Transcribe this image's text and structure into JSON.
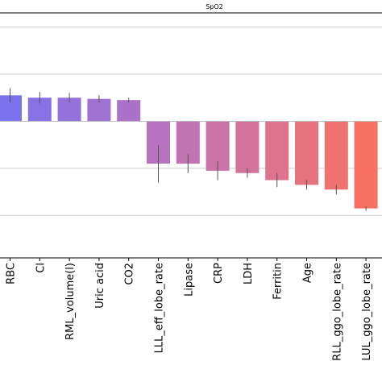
{
  "chart_data": {
    "type": "bar",
    "title": "SpO2",
    "xlabel": "",
    "ylabel": "",
    "grid": true,
    "ylim": [
      -0.58,
      0.46
    ],
    "categories": [
      "RBC",
      "Cl",
      "RML_volume(l)",
      "Uric acid",
      "CO2",
      "LLL_eff_lobe_rate",
      "Lipase",
      "CRP",
      "LDH",
      "Ferritin",
      "Age",
      "RLL_ggo_lobe_rate",
      "LUL_ggo_lobe_rate"
    ],
    "values": [
      0.11,
      0.1,
      0.1,
      0.095,
      0.09,
      -0.18,
      -0.18,
      -0.21,
      -0.22,
      -0.25,
      -0.27,
      -0.29,
      -0.37
    ],
    "errors": [
      0.03,
      0.025,
      0.02,
      0.015,
      0.01,
      0.08,
      0.04,
      0.04,
      0.02,
      0.03,
      0.02,
      0.02,
      0.01
    ],
    "colors": [
      "#7b72ee",
      "#8772e5",
      "#9372dc",
      "#9f72d3",
      "#ab72ca",
      "#b773bf",
      "#c173b2",
      "#cb73a7",
      "#d4739a",
      "#dd738d",
      "#e6737e",
      "#ef7270",
      "#f77063"
    ]
  }
}
